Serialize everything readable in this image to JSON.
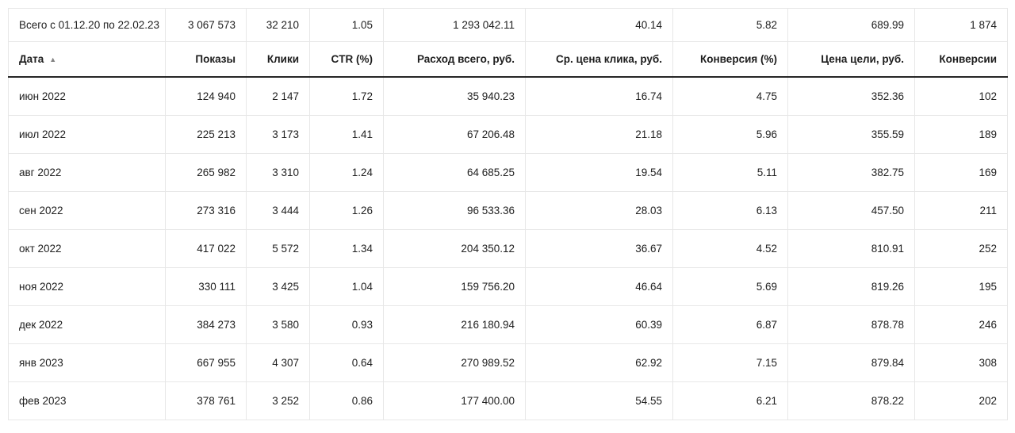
{
  "table": {
    "totals": {
      "cells": [
        "Всего с 01.12.20 по 22.02.23",
        "3 067 573",
        "32 210",
        "1.05",
        "1 293 042.11",
        "40.14",
        "5.82",
        "689.99",
        "1 874"
      ]
    },
    "columns": [
      {
        "label": "Дата",
        "key": "date",
        "align": "left",
        "sorted": "asc"
      },
      {
        "label": "Показы",
        "key": "impressions",
        "align": "right"
      },
      {
        "label": "Клики",
        "key": "clicks",
        "align": "right"
      },
      {
        "label": "CTR (%)",
        "key": "ctr",
        "align": "right"
      },
      {
        "label": "Расход всего, руб.",
        "key": "total-cost",
        "align": "right"
      },
      {
        "label": "Ср. цена клика, руб.",
        "key": "avg-cpc",
        "align": "right"
      },
      {
        "label": "Конверсия (%)",
        "key": "conversion-rate",
        "align": "right"
      },
      {
        "label": "Цена цели, руб.",
        "key": "cost-per-goal",
        "align": "right"
      },
      {
        "label": "Конверсии",
        "key": "conversions",
        "align": "right"
      }
    ],
    "rows": [
      {
        "cells": [
          "июн 2022",
          "124 940",
          "2 147",
          "1.72",
          "35 940.23",
          "16.74",
          "4.75",
          "352.36",
          "102"
        ]
      },
      {
        "cells": [
          "июл 2022",
          "225 213",
          "3 173",
          "1.41",
          "67 206.48",
          "21.18",
          "5.96",
          "355.59",
          "189"
        ]
      },
      {
        "cells": [
          "авг 2022",
          "265 982",
          "3 310",
          "1.24",
          "64 685.25",
          "19.54",
          "5.11",
          "382.75",
          "169"
        ]
      },
      {
        "cells": [
          "сен 2022",
          "273 316",
          "3 444",
          "1.26",
          "96 533.36",
          "28.03",
          "6.13",
          "457.50",
          "211"
        ]
      },
      {
        "cells": [
          "окт 2022",
          "417 022",
          "5 572",
          "1.34",
          "204 350.12",
          "36.67",
          "4.52",
          "810.91",
          "252"
        ]
      },
      {
        "cells": [
          "ноя 2022",
          "330 111",
          "3 425",
          "1.04",
          "159 756.20",
          "46.64",
          "5.69",
          "819.26",
          "195"
        ]
      },
      {
        "cells": [
          "дек 2022",
          "384 273",
          "3 580",
          "0.93",
          "216 180.94",
          "60.39",
          "6.87",
          "878.78",
          "246"
        ]
      },
      {
        "cells": [
          "янв 2023",
          "667 955",
          "4 307",
          "0.64",
          "270 989.52",
          "62.92",
          "7.15",
          "879.84",
          "308"
        ]
      },
      {
        "cells": [
          "фев 2023",
          "378 761",
          "3 252",
          "0.86",
          "177 400.00",
          "54.55",
          "6.21",
          "878.22",
          "202"
        ]
      }
    ]
  },
  "icons": {
    "sort_asc": "▲"
  },
  "colors": {
    "grid_border": "#e7e7e7",
    "header_rule": "#262626",
    "text": "#1e1e1e",
    "sort_arrow": "#848484"
  }
}
